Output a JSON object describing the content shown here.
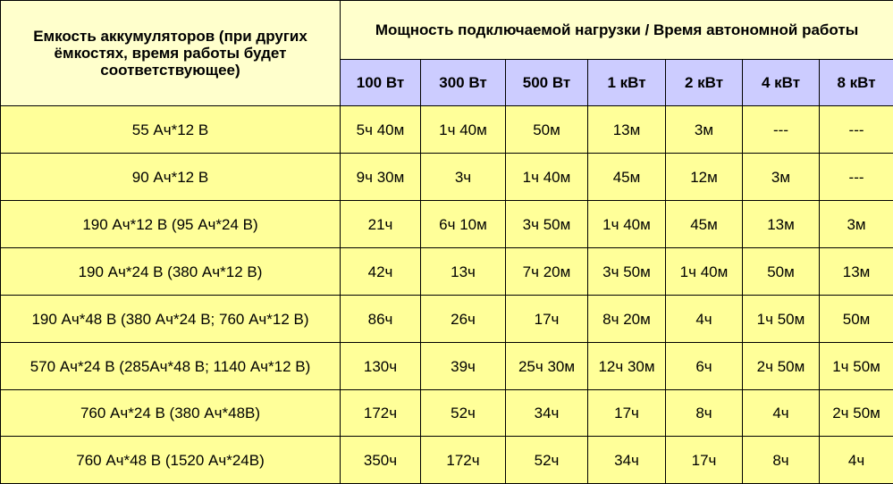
{
  "table": {
    "corner_header": "Емкость аккумуляторов (при других ёмкостях, время работы будет соответствующее)",
    "group_header": "Мощность подключаемой нагрузки / Время автономной работы",
    "power_columns": [
      "100 Вт",
      "300 Вт",
      "500 Вт",
      "1 кВт",
      "2 кВт",
      "4 кВт",
      "8 кВт"
    ],
    "rows": [
      {
        "capacity": "55 Ач*12 В",
        "times": [
          "5ч 40м",
          "1ч 40м",
          "50м",
          "13м",
          "3м",
          "---",
          "---"
        ]
      },
      {
        "capacity": "90 Ач*12 В",
        "times": [
          "9ч 30м",
          "3ч",
          "1ч 40м",
          "45м",
          "12м",
          "3м",
          "---"
        ]
      },
      {
        "capacity": "190 Ач*12 В (95 Ач*24 В)",
        "times": [
          "21ч",
          "6ч 10м",
          "3ч 50м",
          "1ч 40м",
          "45м",
          "13м",
          "3м"
        ]
      },
      {
        "capacity": "190 Ач*24 В (380 Ач*12 В)",
        "times": [
          "42ч",
          "13ч",
          "7ч 20м",
          "3ч 50м",
          "1ч 40м",
          "50м",
          "13м"
        ]
      },
      {
        "capacity": "190 Ач*48 В (380 Ач*24 В; 760 Ач*12 В)",
        "times": [
          "86ч",
          "26ч",
          "17ч",
          "8ч 20м",
          "4ч",
          "1ч 50м",
          "50м"
        ]
      },
      {
        "capacity": "570 Ач*24 В  (285Ач*48 В; 1140 Ач*12 В)",
        "times": [
          "130ч",
          "39ч",
          "25ч 30м",
          "12ч 30м",
          "6ч",
          "2ч 50м",
          "1ч 50м"
        ]
      },
      {
        "capacity": "760 Ач*24 В (380 Ач*48В)",
        "times": [
          "172ч",
          "52ч",
          "34ч",
          "17ч",
          "8ч",
          "4ч",
          "2ч 50м"
        ]
      },
      {
        "capacity": "760 Ач*48 В (1520 Ач*24В)",
        "times": [
          "350ч",
          "172ч",
          "52ч",
          "34ч",
          "17ч",
          "8ч",
          "4ч"
        ]
      }
    ]
  },
  "colors": {
    "cell_background": "#ffff99",
    "header_background": "#ffffcc",
    "power_header_background": "#ccccff",
    "border": "#000000"
  }
}
